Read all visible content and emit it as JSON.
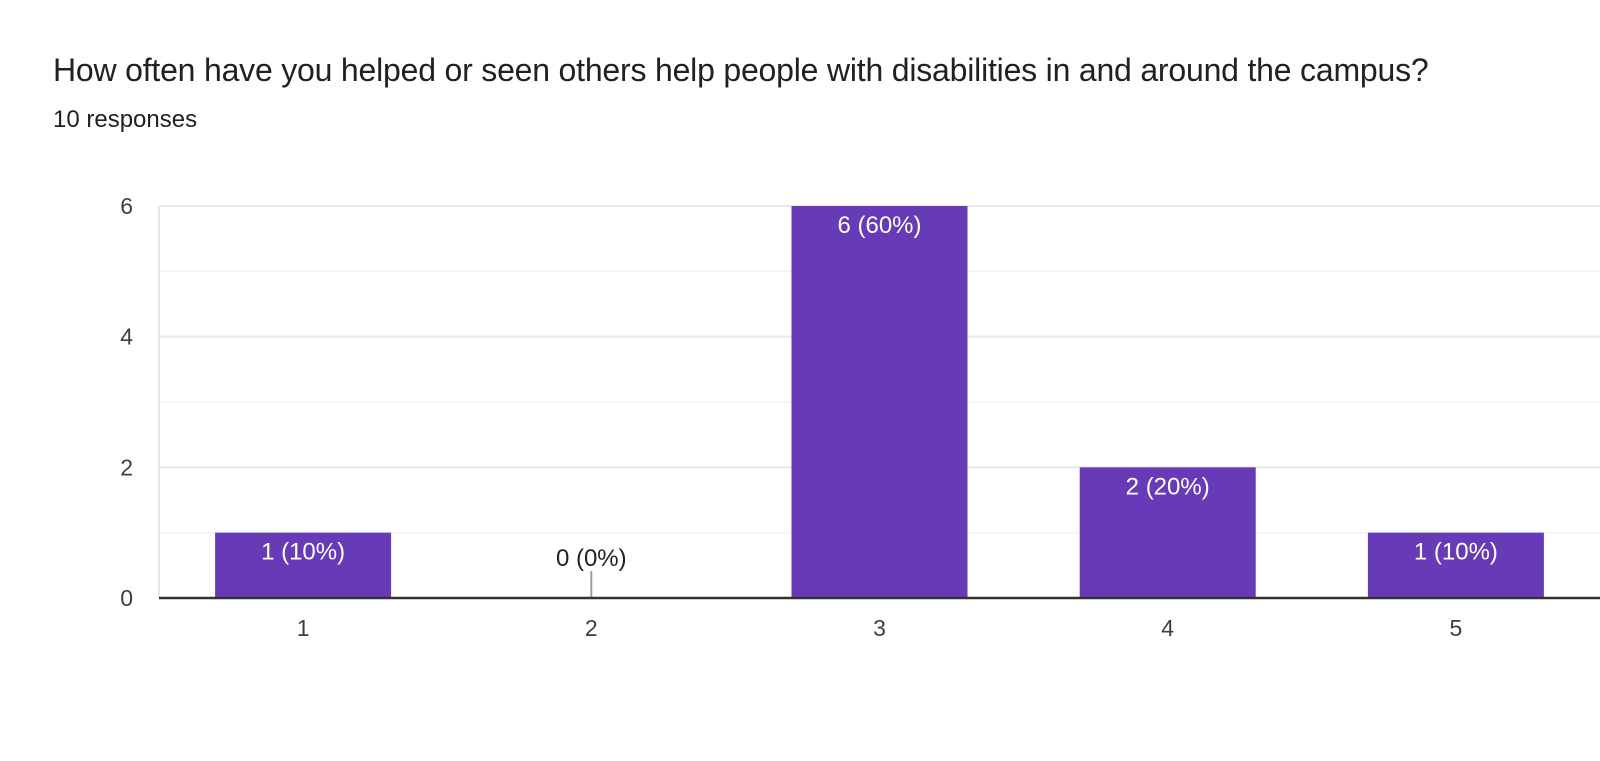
{
  "question": {
    "title": "How often have you helped or seen others help people with disabilities in and around the campus?",
    "responses": "10 responses"
  },
  "colors": {
    "bar": "#673ab7",
    "grid_major": "#e8e8e8",
    "grid_minor": "#f3f3f3",
    "axis": "#333333",
    "label_inside": "#ffffff",
    "label_outside": "#202124"
  },
  "chart_data": {
    "type": "bar",
    "title": "How often have you helped or seen others help people with disabilities in and around the campus?",
    "categories": [
      "1",
      "2",
      "3",
      "4",
      "5"
    ],
    "values": [
      1,
      0,
      6,
      2,
      1
    ],
    "data_labels": [
      "1 (10%)",
      "0 (0%)",
      "6 (60%)",
      "2 (20%)",
      "1 (10%)"
    ],
    "xlabel": "",
    "ylabel": "",
    "ylim": [
      0,
      6
    ],
    "yticks": [
      0,
      2,
      4,
      6
    ],
    "grid": true,
    "legend": "none"
  }
}
